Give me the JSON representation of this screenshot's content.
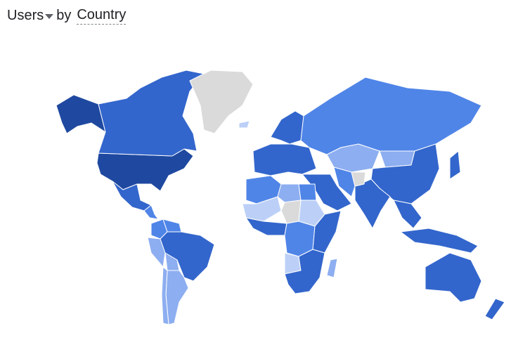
{
  "header": {
    "metric": "Users",
    "connector": "by",
    "dimension": "Country"
  },
  "colors": {
    "level5": "#1f49a0",
    "level4": "#3366cc",
    "level3": "#5085e8",
    "level2": "#8daef0",
    "level1": "#bcd0f7",
    "no_data": "#dadada"
  },
  "regions": [
    {
      "name": "United States",
      "level": "level5"
    },
    {
      "name": "Alaska",
      "level": "level5"
    },
    {
      "name": "Canada",
      "level": "level4"
    },
    {
      "name": "Greenland",
      "level": "no_data"
    },
    {
      "name": "Mexico",
      "level": "level4"
    },
    {
      "name": "Central America",
      "level": "level3"
    },
    {
      "name": "Colombia",
      "level": "level3"
    },
    {
      "name": "Venezuela",
      "level": "level3"
    },
    {
      "name": "Peru",
      "level": "level2"
    },
    {
      "name": "Brazil",
      "level": "level4"
    },
    {
      "name": "Bolivia",
      "level": "level2"
    },
    {
      "name": "Argentina",
      "level": "level2"
    },
    {
      "name": "Chile",
      "level": "level2"
    },
    {
      "name": "Europe",
      "level": "level4"
    },
    {
      "name": "Scandinavia",
      "level": "level4"
    },
    {
      "name": "Russia",
      "level": "level3"
    },
    {
      "name": "Kazakhstan",
      "level": "level2"
    },
    {
      "name": "Mongolia",
      "level": "level2"
    },
    {
      "name": "China",
      "level": "level4"
    },
    {
      "name": "India",
      "level": "level4"
    },
    {
      "name": "Middle East",
      "level": "level4"
    },
    {
      "name": "Iran",
      "level": "level3"
    },
    {
      "name": "Afghanistan",
      "level": "no_data"
    },
    {
      "name": "Southeast Asia",
      "level": "level4"
    },
    {
      "name": "Japan",
      "level": "level4"
    },
    {
      "name": "Indonesia",
      "level": "level4"
    },
    {
      "name": "Australia",
      "level": "level4"
    },
    {
      "name": "New Zealand",
      "level": "level4"
    },
    {
      "name": "North Africa West",
      "level": "level3"
    },
    {
      "name": "Libya",
      "level": "level2"
    },
    {
      "name": "Egypt",
      "level": "level3"
    },
    {
      "name": "Sahel",
      "level": "level1"
    },
    {
      "name": "Chad",
      "level": "no_data"
    },
    {
      "name": "Sudan",
      "level": "level1"
    },
    {
      "name": "West Africa",
      "level": "level4"
    },
    {
      "name": "Central Africa",
      "level": "level3"
    },
    {
      "name": "East Africa",
      "level": "level4"
    },
    {
      "name": "Angola",
      "level": "level1"
    },
    {
      "name": "Southern Africa",
      "level": "level4"
    },
    {
      "name": "Madagascar",
      "level": "level2"
    },
    {
      "name": "Iceland",
      "level": "level1"
    }
  ]
}
